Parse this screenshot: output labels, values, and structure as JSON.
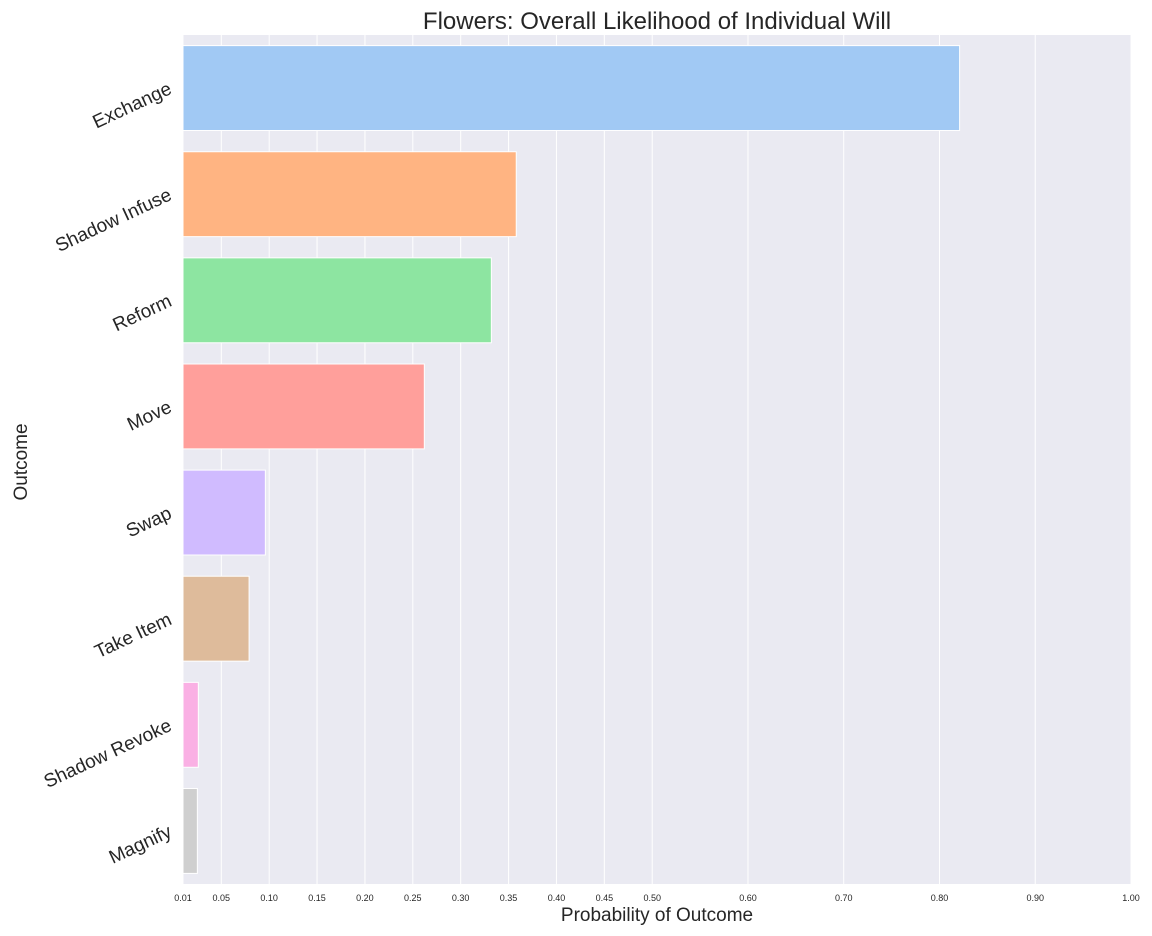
{
  "chart_data": {
    "type": "bar",
    "orientation": "horizontal",
    "title": "Flowers: Overall Likelihood of Individual Will",
    "xlabel": "Probability of Outcome",
    "ylabel": "Outcome",
    "xlim": [
      0.01,
      1.0
    ],
    "x_ticks": [
      "0.01",
      "0.05",
      "0.10",
      "0.15",
      "0.20",
      "0.25",
      "0.30",
      "0.35",
      "0.40",
      "0.45",
      "0.50",
      "0.60",
      "0.70",
      "0.80",
      "0.90",
      "1.00"
    ],
    "categories": [
      "Exchange",
      "Shadow Infuse",
      "Reform",
      "Move",
      "Swap",
      "Take Item",
      "Shadow Revoke",
      "Magnify"
    ],
    "values": [
      0.821,
      0.358,
      0.332,
      0.262,
      0.096,
      0.079,
      0.026,
      0.025
    ],
    "colors": [
      "#a1c9f4",
      "#ffb482",
      "#8de5a1",
      "#ff9f9b",
      "#d0bbff",
      "#debb9b",
      "#fab0e4",
      "#cfcfcf"
    ],
    "background": "#eaeaf2",
    "grid": true,
    "legend": "none"
  }
}
